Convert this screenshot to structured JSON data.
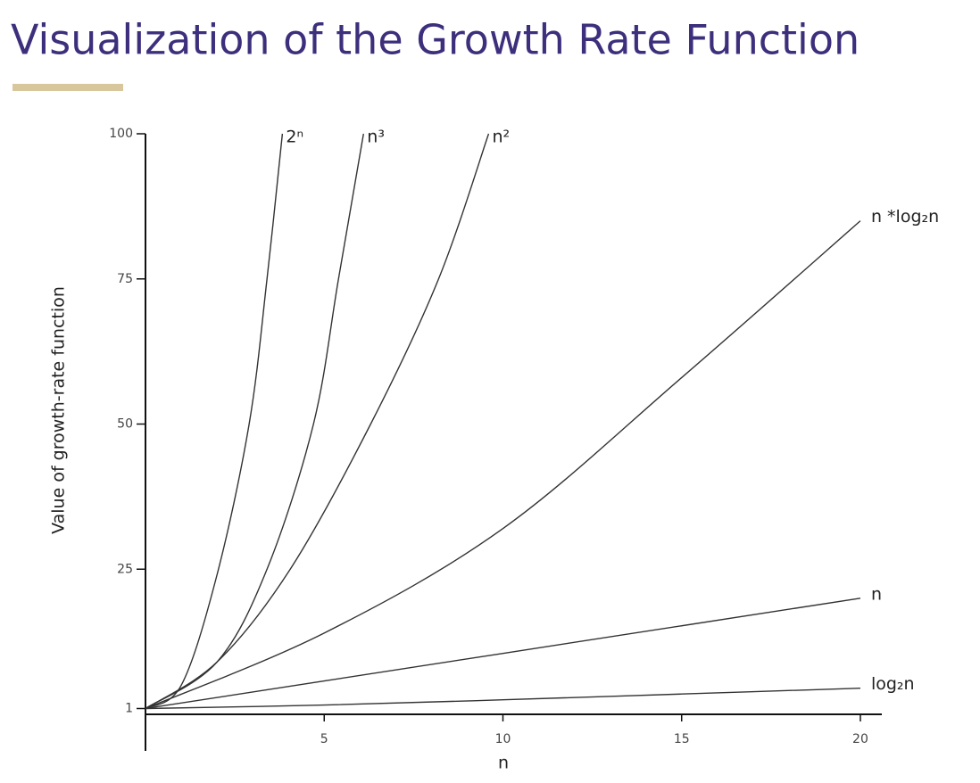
{
  "chart_data": {
    "type": "line",
    "title": "Visualization of the Growth Rate Function",
    "x_label": "n",
    "y_label": "Value of growth-rate function",
    "xlim": [
      0,
      20.6
    ],
    "ylim": [
      0,
      100
    ],
    "xticks": [
      5,
      10,
      15,
      20
    ],
    "yticks": [
      1,
      25,
      50,
      75,
      100
    ],
    "grid": false,
    "series": [
      {
        "name": "2ⁿ",
        "color": "#333333",
        "x": [
          0,
          1,
          2,
          2.9,
          3.4,
          3.83
        ],
        "values": [
          1,
          5,
          24,
          50,
          75,
          100
        ]
      },
      {
        "name": "n³",
        "color": "#333333",
        "x": [
          0,
          2,
          3.4,
          4.7,
          5.4,
          6.1
        ],
        "values": [
          1,
          9,
          25,
          50,
          75,
          100
        ]
      },
      {
        "name": "n²",
        "color": "#333333",
        "x": [
          0,
          2,
          4.05,
          6.3,
          8.2,
          9.6
        ],
        "values": [
          1,
          9,
          25,
          50,
          75,
          100
        ]
      },
      {
        "name": "n *log₂n",
        "color": "#333333",
        "x": [
          0,
          5,
          10,
          15,
          20
        ],
        "values": [
          1,
          14,
          32,
          58,
          85
        ]
      },
      {
        "name": "n",
        "color": "#333333",
        "x": [
          0,
          20
        ],
        "values": [
          1,
          20
        ]
      },
      {
        "name": "log₂n",
        "color": "#333333",
        "x": [
          0,
          5,
          10,
          15,
          20
        ],
        "values": [
          1,
          1.6,
          2.5,
          3.5,
          4.5
        ]
      }
    ]
  }
}
